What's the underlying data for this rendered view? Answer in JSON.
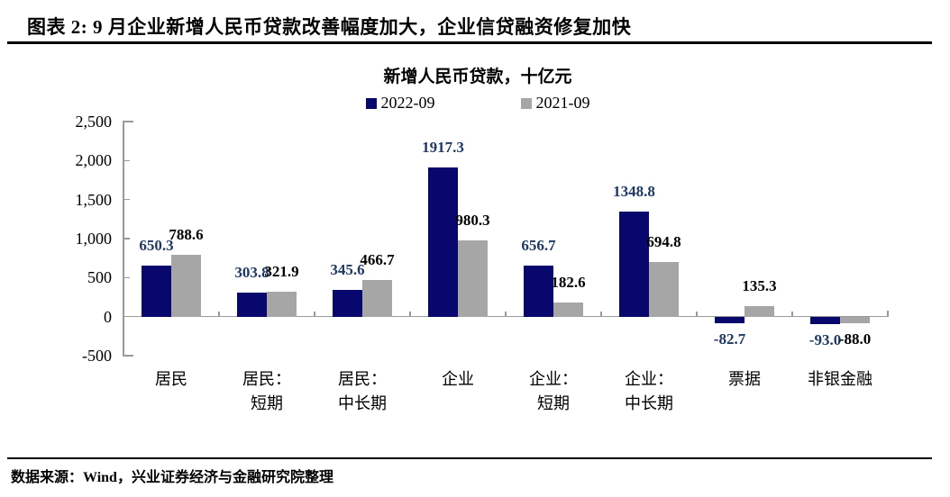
{
  "header": {
    "title": "图表 2: 9 月企业新增人民币贷款改善幅度加大，企业信贷融资修复加快"
  },
  "footer": {
    "source": "数据来源：Wind，兴业证券经济与金融研究院整理"
  },
  "chart_data": {
    "type": "bar",
    "title": "新增人民币贷款，十亿元",
    "legend_position": "top",
    "grid": false,
    "categories": [
      "居民",
      "居民：短期",
      "居民：中长期",
      "企业",
      "企业：短期",
      "企业：中长期",
      "票据",
      "非银金融"
    ],
    "category_lines": [
      [
        "居民"
      ],
      [
        "居民：",
        "短期"
      ],
      [
        "居民：",
        "中长期"
      ],
      [
        "企业"
      ],
      [
        "企业：",
        "短期"
      ],
      [
        "企业：",
        "中长期"
      ],
      [
        "票据"
      ],
      [
        "非银金融"
      ]
    ],
    "series": [
      {
        "name": "2022-09",
        "color": "#07076d",
        "label_color": "#1f3864",
        "values": [
          650.3,
          303.8,
          345.6,
          1917.3,
          656.7,
          1348.8,
          -82.7,
          -93.0
        ]
      },
      {
        "name": "2021-09",
        "color": "#a6a6a6",
        "label_color": "#000000",
        "values": [
          788.6,
          321.9,
          466.7,
          980.3,
          182.6,
          694.8,
          135.3,
          -88.0
        ]
      }
    ],
    "y_axis": {
      "min": -500,
      "max": 2500,
      "step": 500,
      "tick_labels": [
        "2,500",
        "2,000",
        "1,500",
        "1,000",
        "500",
        "0",
        "-500"
      ]
    },
    "axis_color": "#999999"
  }
}
